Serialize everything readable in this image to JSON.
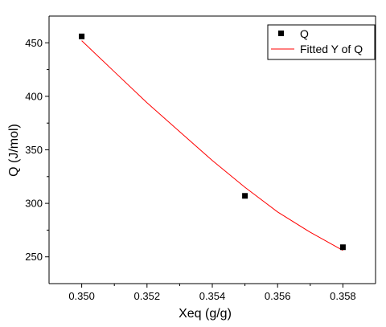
{
  "colors": {
    "fit_line": "#ff0000",
    "marker": "#000000",
    "axis": "#000000",
    "background": "#ffffff"
  },
  "chart_data": {
    "type": "scatter",
    "title": "",
    "xlabel": "Xeq (g/g)",
    "ylabel": "Q (J/mol)",
    "xlim": [
      0.349,
      0.359
    ],
    "ylim": [
      225,
      475
    ],
    "grid": false,
    "legend_position": "top-right",
    "x_ticks": [
      "0.350",
      "0.352",
      "0.354",
      "0.356",
      "0.358"
    ],
    "y_ticks": [
      "250",
      "300",
      "350",
      "400",
      "450"
    ],
    "series": [
      {
        "name": "Q",
        "kind": "scatter",
        "marker": "square",
        "color": "#000000",
        "x": [
          0.35,
          0.355,
          0.358
        ],
        "y": [
          456,
          307,
          259
        ]
      },
      {
        "name": "Fitted Y of Q",
        "kind": "line",
        "color": "#ff0000",
        "x": [
          0.35,
          0.351,
          0.352,
          0.353,
          0.354,
          0.355,
          0.356,
          0.357,
          0.358
        ],
        "y": [
          452,
          423,
          394,
          367,
          340,
          315,
          292,
          273,
          256
        ]
      }
    ]
  }
}
